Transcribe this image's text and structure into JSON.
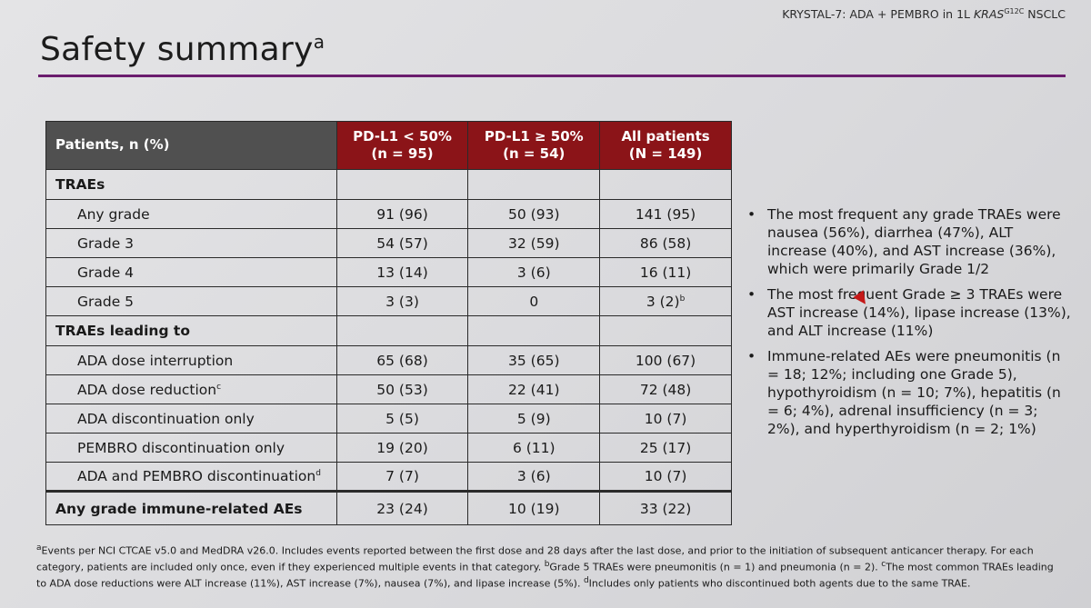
{
  "header": {
    "study_label_prefix": "KRYSTAL-7: ADA + PEMBRO in 1L ",
    "study_label_gene": "KRAS",
    "study_label_sup": "G12C",
    "study_label_suffix": " NSCLC",
    "title": "Safety summary",
    "title_sup": "a",
    "accent_color": "#6b1d6e"
  },
  "table": {
    "header_label": "Patients, n (%)",
    "columns": [
      {
        "line1": "PD-L1 < 50%",
        "line2": "(n = 95)"
      },
      {
        "line1": "PD-L1 ≥ 50%",
        "line2": "(n = 54)"
      },
      {
        "line1": "All patients",
        "line2": "(N = 149)"
      }
    ],
    "header_color": "#8b1418",
    "sections": [
      {
        "title": "TRAEs",
        "rows": [
          {
            "label": "Any grade",
            "sup": "",
            "values": [
              "91 (96)",
              "50 (93)",
              "141 (95)"
            ],
            "last_sup": ""
          },
          {
            "label": "Grade 3",
            "sup": "",
            "values": [
              "54 (57)",
              "32 (59)",
              "86 (58)"
            ],
            "last_sup": ""
          },
          {
            "label": "Grade 4",
            "sup": "",
            "values": [
              "13 (14)",
              "3 (6)",
              "16 (11)"
            ],
            "last_sup": ""
          },
          {
            "label": "Grade 5",
            "sup": "",
            "values": [
              "3 (3)",
              "0",
              "3 (2)"
            ],
            "last_sup": "b"
          }
        ]
      },
      {
        "title": "TRAEs leading to",
        "rows": [
          {
            "label": "ADA dose interruption",
            "sup": "",
            "values": [
              "65 (68)",
              "35 (65)",
              "100 (67)"
            ],
            "last_sup": ""
          },
          {
            "label": "ADA dose reduction",
            "sup": "c",
            "values": [
              "50 (53)",
              "22 (41)",
              "72 (48)"
            ],
            "last_sup": ""
          },
          {
            "label": "ADA discontinuation only",
            "sup": "",
            "values": [
              "5 (5)",
              "5 (9)",
              "10 (7)"
            ],
            "last_sup": ""
          },
          {
            "label": "PEMBRO discontinuation only",
            "sup": "",
            "values": [
              "19 (20)",
              "6 (11)",
              "25 (17)"
            ],
            "last_sup": ""
          },
          {
            "label": "ADA and PEMBRO discontinuation",
            "sup": "d",
            "values": [
              "7 (7)",
              "3 (6)",
              "10 (7)"
            ],
            "last_sup": ""
          }
        ]
      }
    ],
    "final_row": {
      "label": "Any grade immune-related AEs",
      "values": [
        "23 (24)",
        "10 (19)",
        "33 (22)"
      ]
    }
  },
  "bullets": [
    "The most frequent any grade TRAEs were nausea (56%), diarrhea (47%), ALT increase (40%), and AST increase (36%), which were primarily Grade 1/2",
    "The most frequent Grade ≥ 3 TRAEs were AST increase (14%), lipase increase (13%), and ALT increase (11%)",
    "Immune-related AEs were pneumonitis (n = 18; 12%; including one Grade 5), hypothyroidism (n = 10; 7%), hepatitis (n = 6; 4%), adrenal insufficiency (n = 3; 2%), and hyperthyroidism (n = 2; 1%)"
  ],
  "footnote": {
    "a_marker": "a",
    "a_text": "Events per NCI CTCAE v5.0 and MedDRA v26.0. Includes events reported between the first dose and 28 days after the last dose, and prior to the initiation of subsequent anticancer therapy. For each category, patients are included only once, even if they experienced multiple events in that category. ",
    "b_marker": "b",
    "b_text": "Grade 5 TRAEs were pneumonitis (n = 1) and pneumonia (n = 2). ",
    "c_marker": "c",
    "c_text": "The most common TRAEs leading to ADA dose reductions were ALT increase (11%), AST increase (7%), nausea (7%), and lipase increase (5%). ",
    "d_marker": "d",
    "d_text": "Includes only patients who discontinued both agents due to the same TRAE."
  }
}
